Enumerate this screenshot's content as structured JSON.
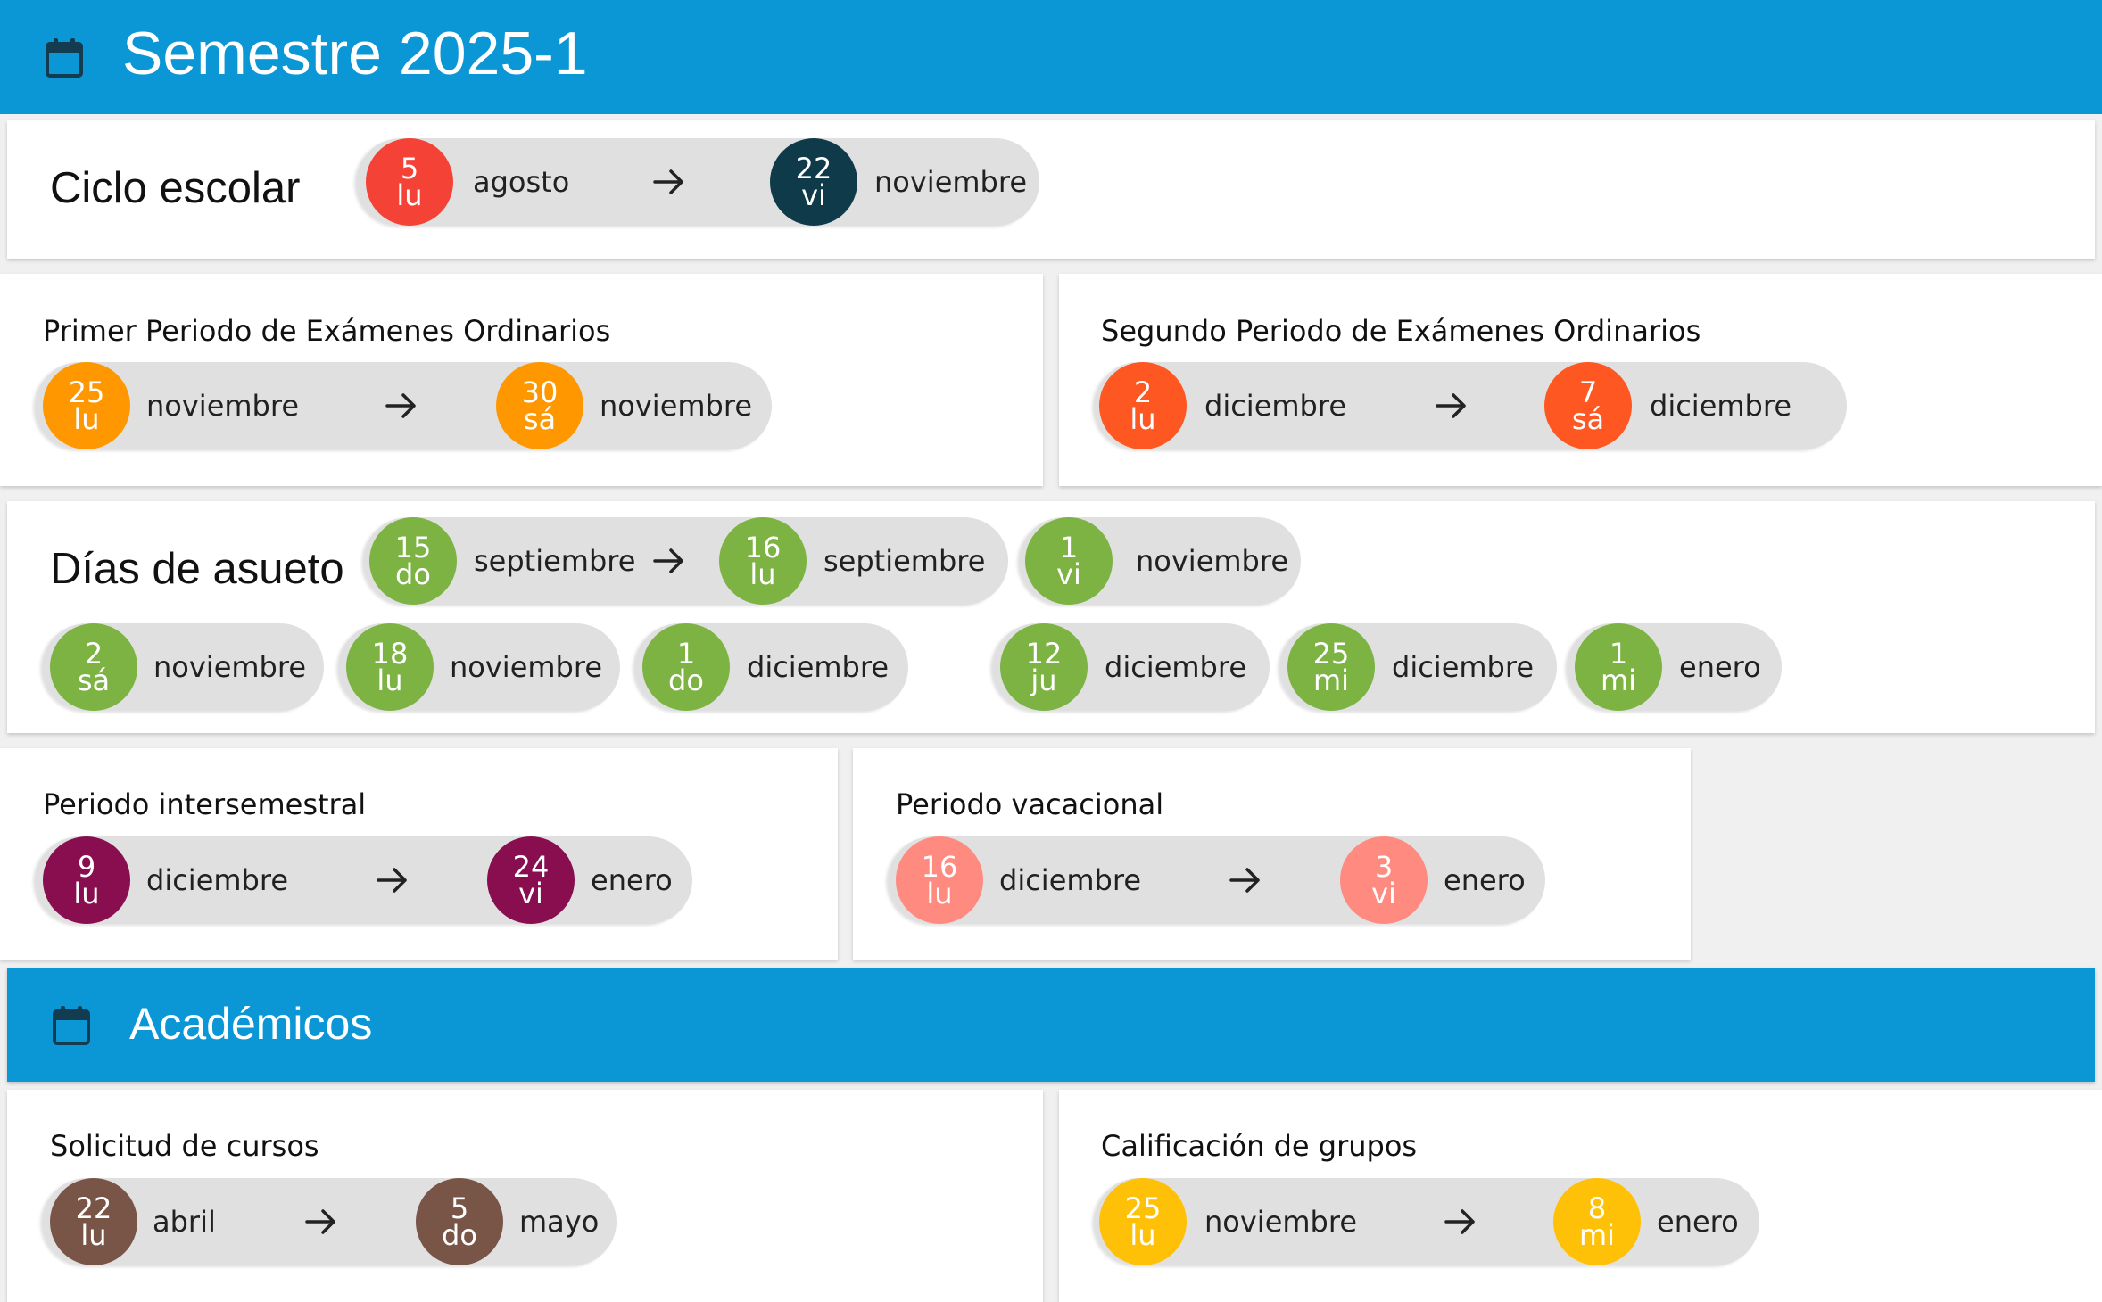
{
  "header": {
    "title": "Semestre 2025-1",
    "icon": "calendar-icon"
  },
  "ciclo": {
    "label": "Ciclo escolar",
    "start": {
      "day": "5",
      "weekday": "lu",
      "month": "agosto",
      "color": "#f44336"
    },
    "end": {
      "day": "22",
      "weekday": "vi",
      "month": "noviembre",
      "color": "#0f3a4a"
    }
  },
  "primer_periodo": {
    "label": "Primer Periodo de Exámenes Ordinarios",
    "start": {
      "day": "25",
      "weekday": "lu",
      "month": "noviembre",
      "color": "#ff9800"
    },
    "end": {
      "day": "30",
      "weekday": "sá",
      "month": "noviembre",
      "color": "#ff9800"
    }
  },
  "segundo_periodo": {
    "label": "Segundo Periodo de Exámenes Ordinarios",
    "start": {
      "day": "2",
      "weekday": "lu",
      "month": "diciembre",
      "color": "#ff5722"
    },
    "end": {
      "day": "7",
      "weekday": "sá",
      "month": "diciembre",
      "color": "#ff5722"
    }
  },
  "asueto": {
    "label": "Días de asueto",
    "range": {
      "start": {
        "day": "15",
        "weekday": "do",
        "month": "septiembre"
      },
      "end": {
        "day": "16",
        "weekday": "lu",
        "month": "septiembre"
      }
    },
    "days": [
      {
        "day": "1",
        "weekday": "vi",
        "month": "noviembre"
      },
      {
        "day": "2",
        "weekday": "sá",
        "month": "noviembre"
      },
      {
        "day": "18",
        "weekday": "lu",
        "month": "noviembre"
      },
      {
        "day": "1",
        "weekday": "do",
        "month": "diciembre"
      },
      {
        "day": "12",
        "weekday": "ju",
        "month": "diciembre"
      },
      {
        "day": "25",
        "weekday": "mi",
        "month": "diciembre"
      },
      {
        "day": "1",
        "weekday": "mi",
        "month": "enero"
      }
    ],
    "color": "#7cb342"
  },
  "intersemestral": {
    "label": "Periodo intersemestral",
    "start": {
      "day": "9",
      "weekday": "lu",
      "month": "diciembre",
      "color": "#880e4f"
    },
    "end": {
      "day": "24",
      "weekday": "vi",
      "month": "enero",
      "color": "#880e4f"
    }
  },
  "vacacional": {
    "label": "Periodo vacacional",
    "start": {
      "day": "16",
      "weekday": "lu",
      "month": "diciembre",
      "color": "#ff8a80"
    },
    "end": {
      "day": "3",
      "weekday": "vi",
      "month": "enero",
      "color": "#ff8a80"
    }
  },
  "academicos": {
    "title": "Académicos",
    "icon": "calendar-icon"
  },
  "solicitud": {
    "label": "Solicitud de cursos",
    "start": {
      "day": "22",
      "weekday": "lu",
      "month": "abril",
      "color": "#795548"
    },
    "end": {
      "day": "5",
      "weekday": "do",
      "month": "mayo",
      "color": "#795548"
    }
  },
  "calificacion": {
    "label": "Calificación de grupos",
    "start": {
      "day": "25",
      "weekday": "lu",
      "month": "noviembre",
      "color": "#ffc107"
    },
    "end": {
      "day": "8",
      "weekday": "mi",
      "month": "enero",
      "color": "#ffc107"
    }
  }
}
